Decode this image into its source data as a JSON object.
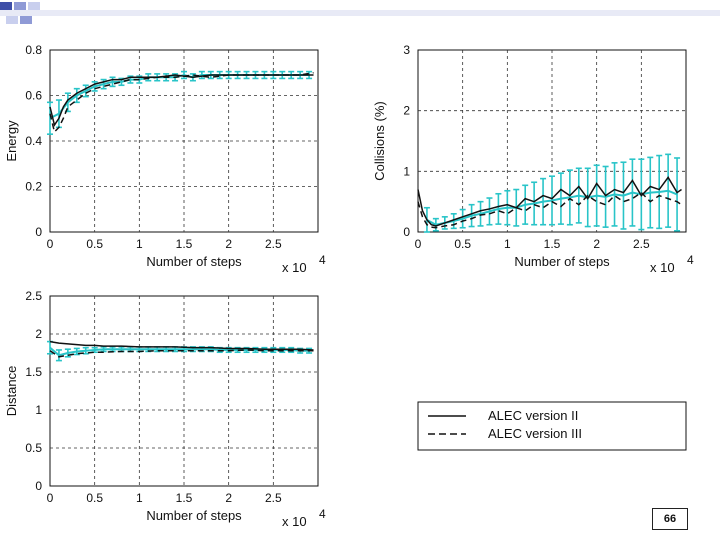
{
  "slide": {
    "page_number": "66",
    "accent_colors": [
      "#3f4fa8",
      "#8f9ad6",
      "#c9cfee"
    ]
  },
  "legend": {
    "entries": [
      {
        "label": "ALEC version II",
        "style": "solid",
        "color": "#111111"
      },
      {
        "label": "ALEC version III",
        "style": "dashed",
        "color": "#111111"
      }
    ]
  },
  "chart_data": [
    {
      "type": "line",
      "id": "energy",
      "ylabel": "Energy",
      "xlabel": "Number of steps",
      "x_multiplier_base": "x 10",
      "x_multiplier_exp": "4",
      "xlim": [
        0,
        3
      ],
      "ylim": [
        0,
        0.8
      ],
      "xticks": [
        0,
        0.5,
        1,
        1.5,
        2,
        2.5
      ],
      "xtick_labels": [
        "0",
        "0.5",
        "1",
        "1.5",
        "2",
        "2.5"
      ],
      "yticks": [
        0,
        0.2,
        0.4,
        0.6,
        0.8
      ],
      "ytick_labels": [
        "0",
        "0.2",
        "0.4",
        "0.6",
        "0.8"
      ],
      "series": [
        {
          "name": "ALEC version II",
          "style": "solid",
          "color": "#111111",
          "x": [
            0,
            0.05,
            0.1,
            0.15,
            0.2,
            0.3,
            0.4,
            0.5,
            0.6,
            0.7,
            0.8,
            0.9,
            1.0,
            1.2,
            1.4,
            1.6,
            1.8,
            2.0,
            2.2,
            2.4,
            2.6,
            2.8,
            2.95
          ],
          "y": [
            0.55,
            0.47,
            0.5,
            0.55,
            0.58,
            0.61,
            0.63,
            0.65,
            0.66,
            0.67,
            0.67,
            0.68,
            0.68,
            0.68,
            0.69,
            0.68,
            0.69,
            0.69,
            0.69,
            0.69,
            0.69,
            0.69,
            0.69
          ]
        },
        {
          "name": "ALEC version III",
          "style": "dashed",
          "color": "#111111",
          "x": [
            0,
            0.05,
            0.1,
            0.15,
            0.2,
            0.3,
            0.4,
            0.5,
            0.6,
            0.7,
            0.8,
            0.9,
            1.0,
            1.2,
            1.4,
            1.6,
            1.8,
            2.0,
            2.2,
            2.4,
            2.6,
            2.8,
            2.95
          ],
          "y": [
            0.52,
            0.44,
            0.46,
            0.5,
            0.55,
            0.58,
            0.61,
            0.63,
            0.64,
            0.65,
            0.66,
            0.67,
            0.67,
            0.68,
            0.68,
            0.69,
            0.68,
            0.69,
            0.69,
            0.69,
            0.69,
            0.69,
            0.7
          ]
        },
        {
          "name": "error bars",
          "style": "errorbar",
          "color": "#29c4c8",
          "x": [
            0,
            0.1,
            0.2,
            0.3,
            0.4,
            0.5,
            0.6,
            0.7,
            0.8,
            0.9,
            1.0,
            1.1,
            1.2,
            1.3,
            1.4,
            1.5,
            1.6,
            1.7,
            1.8,
            1.9,
            2.0,
            2.1,
            2.2,
            2.3,
            2.4,
            2.5,
            2.6,
            2.7,
            2.8,
            2.9
          ],
          "y": [
            0.5,
            0.52,
            0.57,
            0.6,
            0.62,
            0.64,
            0.65,
            0.66,
            0.66,
            0.67,
            0.67,
            0.68,
            0.68,
            0.68,
            0.68,
            0.69,
            0.68,
            0.69,
            0.69,
            0.69,
            0.69,
            0.69,
            0.69,
            0.69,
            0.69,
            0.69,
            0.69,
            0.69,
            0.69,
            0.69
          ],
          "err": [
            0.07,
            0.06,
            0.04,
            0.03,
            0.025,
            0.02,
            0.02,
            0.02,
            0.015,
            0.015,
            0.015,
            0.015,
            0.015,
            0.015,
            0.015,
            0.015,
            0.015,
            0.015,
            0.015,
            0.015,
            0.015,
            0.015,
            0.015,
            0.015,
            0.015,
            0.015,
            0.015,
            0.015,
            0.015,
            0.015
          ]
        }
      ]
    },
    {
      "type": "line",
      "id": "collisions",
      "ylabel": "Collisions (%)",
      "xlabel": "Number of steps",
      "x_multiplier_base": "x 10",
      "x_multiplier_exp": "4",
      "xlim": [
        0,
        3
      ],
      "ylim": [
        0,
        3
      ],
      "xticks": [
        0,
        0.5,
        1,
        1.5,
        2,
        2.5
      ],
      "xtick_labels": [
        "0",
        "0.5",
        "1",
        "1.5",
        "2",
        "2.5"
      ],
      "yticks": [
        0,
        1,
        2,
        3
      ],
      "ytick_labels": [
        "0",
        "1",
        "2",
        "3"
      ],
      "series": [
        {
          "name": "ALEC version II",
          "style": "solid",
          "color": "#111111",
          "x": [
            0,
            0.05,
            0.1,
            0.15,
            0.2,
            0.3,
            0.4,
            0.5,
            0.6,
            0.7,
            0.8,
            0.9,
            1.0,
            1.1,
            1.2,
            1.3,
            1.4,
            1.5,
            1.6,
            1.7,
            1.8,
            1.9,
            2.0,
            2.1,
            2.2,
            2.3,
            2.4,
            2.5,
            2.6,
            2.7,
            2.8,
            2.9,
            2.95
          ],
          "y": [
            0.7,
            0.35,
            0.2,
            0.12,
            0.1,
            0.15,
            0.2,
            0.25,
            0.3,
            0.35,
            0.38,
            0.42,
            0.45,
            0.4,
            0.55,
            0.5,
            0.6,
            0.55,
            0.7,
            0.6,
            0.75,
            0.55,
            0.8,
            0.6,
            0.7,
            0.65,
            0.85,
            0.6,
            0.75,
            0.7,
            0.9,
            0.65,
            0.7
          ]
        },
        {
          "name": "ALEC version III",
          "style": "dashed",
          "color": "#111111",
          "x": [
            0,
            0.05,
            0.1,
            0.15,
            0.2,
            0.3,
            0.4,
            0.5,
            0.6,
            0.7,
            0.8,
            0.9,
            1.0,
            1.1,
            1.2,
            1.3,
            1.4,
            1.5,
            1.6,
            1.7,
            1.8,
            1.9,
            2.0,
            2.1,
            2.2,
            2.3,
            2.4,
            2.5,
            2.6,
            2.7,
            2.8,
            2.9,
            2.95
          ],
          "y": [
            0.5,
            0.25,
            0.12,
            0.08,
            0.07,
            0.1,
            0.12,
            0.18,
            0.22,
            0.28,
            0.3,
            0.35,
            0.3,
            0.4,
            0.35,
            0.45,
            0.4,
            0.5,
            0.42,
            0.55,
            0.45,
            0.6,
            0.5,
            0.45,
            0.6,
            0.5,
            0.55,
            0.65,
            0.5,
            0.6,
            0.55,
            0.5,
            0.45
          ]
        },
        {
          "name": "error bars",
          "style": "errorbar",
          "color": "#29c4c8",
          "x": [
            0.1,
            0.2,
            0.3,
            0.4,
            0.5,
            0.6,
            0.7,
            0.8,
            0.9,
            1.0,
            1.1,
            1.2,
            1.3,
            1.4,
            1.5,
            1.6,
            1.7,
            1.8,
            1.9,
            2.0,
            2.1,
            2.2,
            2.3,
            2.4,
            2.5,
            2.6,
            2.7,
            2.8,
            2.9
          ],
          "y": [
            0.2,
            0.12,
            0.15,
            0.18,
            0.22,
            0.27,
            0.3,
            0.34,
            0.38,
            0.4,
            0.4,
            0.45,
            0.47,
            0.5,
            0.52,
            0.55,
            0.57,
            0.6,
            0.57,
            0.6,
            0.58,
            0.62,
            0.6,
            0.65,
            0.62,
            0.65,
            0.66,
            0.68,
            0.62
          ],
          "err": [
            0.2,
            0.1,
            0.1,
            0.12,
            0.15,
            0.18,
            0.2,
            0.22,
            0.25,
            0.28,
            0.3,
            0.32,
            0.35,
            0.38,
            0.4,
            0.42,
            0.45,
            0.45,
            0.48,
            0.5,
            0.5,
            0.52,
            0.55,
            0.55,
            0.58,
            0.58,
            0.6,
            0.6,
            0.6
          ]
        }
      ]
    },
    {
      "type": "line",
      "id": "distance",
      "ylabel": "Distance",
      "xlabel": "Number of steps",
      "x_multiplier_base": "x 10",
      "x_multiplier_exp": "4",
      "xlim": [
        0,
        3
      ],
      "ylim": [
        0,
        2.5
      ],
      "xticks": [
        0,
        0.5,
        1,
        1.5,
        2,
        2.5
      ],
      "xtick_labels": [
        "0",
        "0.5",
        "1",
        "1.5",
        "2",
        "2.5"
      ],
      "yticks": [
        0,
        0.5,
        1,
        1.5,
        2,
        2.5
      ],
      "ytick_labels": [
        "0",
        "0.5",
        "1",
        "1.5",
        "2",
        "2.5"
      ],
      "series": [
        {
          "name": "ALEC version II",
          "style": "solid",
          "color": "#111111",
          "x": [
            0,
            0.1,
            0.2,
            0.3,
            0.4,
            0.5,
            0.6,
            0.8,
            1.0,
            1.2,
            1.4,
            1.6,
            1.8,
            2.0,
            2.2,
            2.4,
            2.6,
            2.8,
            2.95
          ],
          "y": [
            1.9,
            1.88,
            1.87,
            1.86,
            1.85,
            1.85,
            1.84,
            1.84,
            1.83,
            1.83,
            1.83,
            1.82,
            1.82,
            1.81,
            1.81,
            1.8,
            1.8,
            1.8,
            1.79
          ]
        },
        {
          "name": "ALEC version III",
          "style": "dashed",
          "color": "#111111",
          "x": [
            0,
            0.1,
            0.2,
            0.3,
            0.4,
            0.5,
            0.6,
            0.8,
            1.0,
            1.2,
            1.4,
            1.6,
            1.8,
            2.0,
            2.2,
            2.4,
            2.6,
            2.8,
            2.95
          ],
          "y": [
            1.78,
            1.7,
            1.72,
            1.74,
            1.75,
            1.76,
            1.76,
            1.77,
            1.77,
            1.78,
            1.78,
            1.78,
            1.78,
            1.78,
            1.79,
            1.78,
            1.78,
            1.78,
            1.78
          ]
        },
        {
          "name": "error bars",
          "style": "errorbar",
          "color": "#29c4c8",
          "x": [
            0,
            0.1,
            0.2,
            0.3,
            0.4,
            0.5,
            0.6,
            0.7,
            0.8,
            0.9,
            1.0,
            1.1,
            1.2,
            1.3,
            1.4,
            1.5,
            1.6,
            1.7,
            1.8,
            1.9,
            2.0,
            2.1,
            2.2,
            2.3,
            2.4,
            2.5,
            2.6,
            2.7,
            2.8,
            2.9
          ],
          "y": [
            1.82,
            1.72,
            1.75,
            1.77,
            1.78,
            1.79,
            1.8,
            1.8,
            1.8,
            1.8,
            1.8,
            1.8,
            1.8,
            1.8,
            1.8,
            1.8,
            1.8,
            1.8,
            1.8,
            1.79,
            1.79,
            1.79,
            1.79,
            1.79,
            1.79,
            1.79,
            1.79,
            1.79,
            1.78,
            1.78
          ],
          "err": [
            0.08,
            0.07,
            0.05,
            0.04,
            0.04,
            0.03,
            0.03,
            0.03,
            0.03,
            0.03,
            0.03,
            0.03,
            0.03,
            0.03,
            0.03,
            0.03,
            0.03,
            0.03,
            0.03,
            0.03,
            0.03,
            0.03,
            0.03,
            0.03,
            0.03,
            0.03,
            0.03,
            0.03,
            0.03,
            0.03
          ]
        }
      ]
    }
  ]
}
